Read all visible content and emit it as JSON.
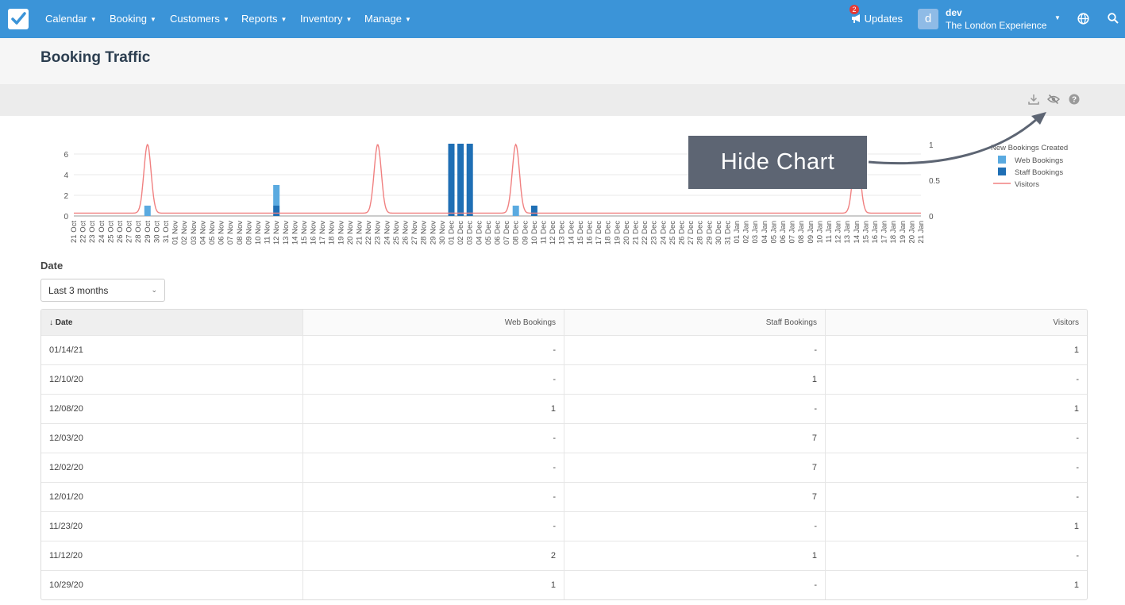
{
  "nav": {
    "menu": [
      {
        "label": "Calendar"
      },
      {
        "label": "Booking"
      },
      {
        "label": "Customers"
      },
      {
        "label": "Reports"
      },
      {
        "label": "Inventory"
      },
      {
        "label": "Manage"
      }
    ],
    "updates_label": "Updates",
    "updates_count": "2",
    "avatar_letter": "d",
    "user_name": "dev",
    "company": "The London Experience"
  },
  "page": {
    "title": "Booking Traffic"
  },
  "callout": {
    "text": "Hide Chart"
  },
  "filter": {
    "label": "Date",
    "selected": "Last 3 months"
  },
  "table": {
    "headers": [
      "↓ Date",
      "Web Bookings",
      "Staff Bookings",
      "Visitors"
    ],
    "rows": [
      [
        "01/14/21",
        "-",
        "-",
        "1"
      ],
      [
        "12/10/20",
        "-",
        "1",
        "-"
      ],
      [
        "12/08/20",
        "1",
        "-",
        "1"
      ],
      [
        "12/03/20",
        "-",
        "7",
        "-"
      ],
      [
        "12/02/20",
        "-",
        "7",
        "-"
      ],
      [
        "12/01/20",
        "-",
        "7",
        "-"
      ],
      [
        "11/23/20",
        "-",
        "-",
        "1"
      ],
      [
        "11/12/20",
        "2",
        "1",
        "-"
      ],
      [
        "10/29/20",
        "1",
        "-",
        "1"
      ]
    ]
  },
  "colors": {
    "nav": "#3b94d8",
    "web": "#5aaae0",
    "staff": "#1f6fb5",
    "visitors": "#f08080"
  },
  "chart_data": {
    "type": "bar",
    "legend_title": "New Bookings Created",
    "legend_position": "top-right",
    "x": [
      "21 Oct",
      "22 Oct",
      "23 Oct",
      "24 Oct",
      "25 Oct",
      "26 Oct",
      "27 Oct",
      "28 Oct",
      "29 Oct",
      "30 Oct",
      "31 Oct",
      "01 Nov",
      "02 Nov",
      "03 Nov",
      "04 Nov",
      "05 Nov",
      "06 Nov",
      "07 Nov",
      "08 Nov",
      "09 Nov",
      "10 Nov",
      "11 Nov",
      "12 Nov",
      "13 Nov",
      "14 Nov",
      "15 Nov",
      "16 Nov",
      "17 Nov",
      "18 Nov",
      "19 Nov",
      "20 Nov",
      "21 Nov",
      "22 Nov",
      "23 Nov",
      "24 Nov",
      "25 Nov",
      "26 Nov",
      "27 Nov",
      "28 Nov",
      "29 Nov",
      "30 Nov",
      "01 Dec",
      "02 Dec",
      "03 Dec",
      "04 Dec",
      "05 Dec",
      "06 Dec",
      "07 Dec",
      "08 Dec",
      "09 Dec",
      "10 Dec",
      "11 Dec",
      "12 Dec",
      "13 Dec",
      "14 Dec",
      "15 Dec",
      "16 Dec",
      "17 Dec",
      "18 Dec",
      "19 Dec",
      "20 Dec",
      "21 Dec",
      "22 Dec",
      "23 Dec",
      "24 Dec",
      "25 Dec",
      "26 Dec",
      "27 Dec",
      "28 Dec",
      "29 Dec",
      "30 Dec",
      "31 Dec",
      "01 Jan",
      "02 Jan",
      "03 Jan",
      "04 Jan",
      "05 Jan",
      "06 Jan",
      "07 Jan",
      "08 Jan",
      "09 Jan",
      "10 Jan",
      "11 Jan",
      "12 Jan",
      "13 Jan",
      "14 Jan",
      "15 Jan",
      "16 Jan",
      "17 Jan",
      "18 Jan",
      "19 Jan",
      "20 Jan",
      "21 Jan"
    ],
    "series": [
      {
        "name": "Web Bookings",
        "kind": "bar",
        "axis": "left",
        "points": [
          [
            "29 Oct",
            1
          ],
          [
            "12 Nov",
            2
          ],
          [
            "08 Dec",
            1
          ]
        ]
      },
      {
        "name": "Staff Bookings",
        "kind": "bar",
        "axis": "left",
        "points": [
          [
            "12 Nov",
            1
          ],
          [
            "01 Dec",
            7
          ],
          [
            "02 Dec",
            7
          ],
          [
            "03 Dec",
            7
          ],
          [
            "10 Dec",
            1
          ]
        ]
      },
      {
        "name": "Visitors",
        "kind": "line",
        "axis": "right",
        "points": [
          [
            "29 Oct",
            1
          ],
          [
            "23 Nov",
            1
          ],
          [
            "08 Dec",
            1
          ],
          [
            "14 Jan",
            1
          ]
        ]
      }
    ],
    "left_axis": {
      "ticks": [
        0,
        2,
        4,
        6
      ],
      "range": [
        0,
        7.5
      ]
    },
    "right_axis": {
      "ticks": [
        0,
        0.5,
        1
      ],
      "range": [
        0,
        1.05
      ]
    },
    "grid": true
  }
}
